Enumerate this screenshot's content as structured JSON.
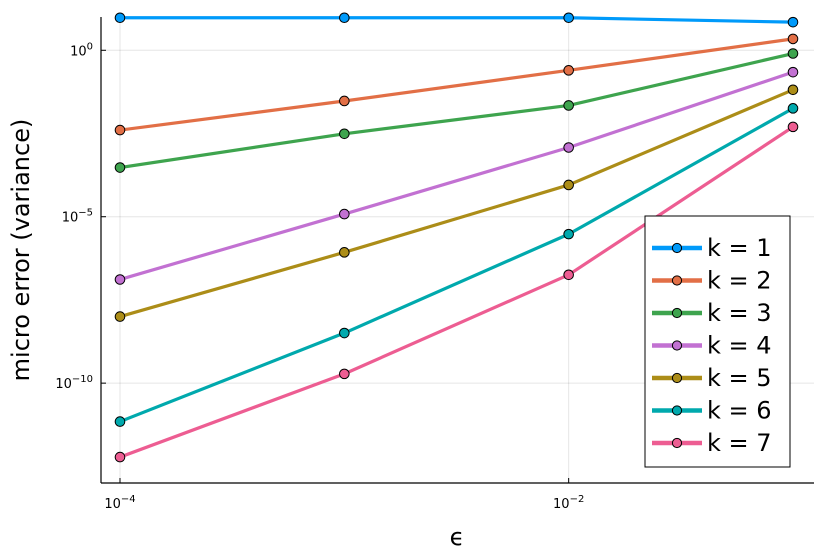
{
  "chart_data": {
    "type": "line",
    "xlabel": "ϵ",
    "ylabel": "micro error (variance)",
    "x_scale": "log10",
    "y_scale": "log10",
    "xlim": [
      0.0001,
      0.1
    ],
    "ylim": [
      1e-13,
      10.0
    ],
    "x_ticks": [
      {
        "value": 0.0001,
        "base": "10",
        "exp": "−4"
      },
      {
        "value": 0.01,
        "base": "10",
        "exp": "−2"
      }
    ],
    "y_ticks": [
      {
        "value": 1,
        "base": "10",
        "exp": "0"
      },
      {
        "value": 1e-05,
        "base": "10",
        "exp": "−5"
      },
      {
        "value": 1e-10,
        "base": "10",
        "exp": "−10"
      }
    ],
    "grid": true,
    "legend_position": "bottom-right",
    "x": [
      0.0001,
      0.001,
      0.01,
      0.1
    ],
    "series": [
      {
        "name": "k = 1",
        "color": "#009AFA",
        "values": [
          9.5,
          9.5,
          9.5,
          7.0
        ]
      },
      {
        "name": "k = 2",
        "color": "#E26F46",
        "values": [
          0.004,
          0.03,
          0.25,
          2.2
        ]
      },
      {
        "name": "k = 3",
        "color": "#3EA44E",
        "values": [
          0.0003,
          0.0031,
          0.022,
          0.8
        ]
      },
      {
        "name": "k = 4",
        "color": "#C271D2",
        "values": [
          1.3e-07,
          1.2e-05,
          0.0012,
          0.22
        ]
      },
      {
        "name": "k = 5",
        "color": "#AC8D18",
        "values": [
          1e-08,
          8.5e-07,
          9e-05,
          0.065
        ]
      },
      {
        "name": "k = 6",
        "color": "#00A9AD",
        "values": [
          7e-12,
          3.2e-09,
          3e-06,
          0.018
        ]
      },
      {
        "name": "k = 7",
        "color": "#ED5D92",
        "values": [
          6e-13,
          1.9e-10,
          1.8e-07,
          0.005
        ]
      }
    ]
  }
}
